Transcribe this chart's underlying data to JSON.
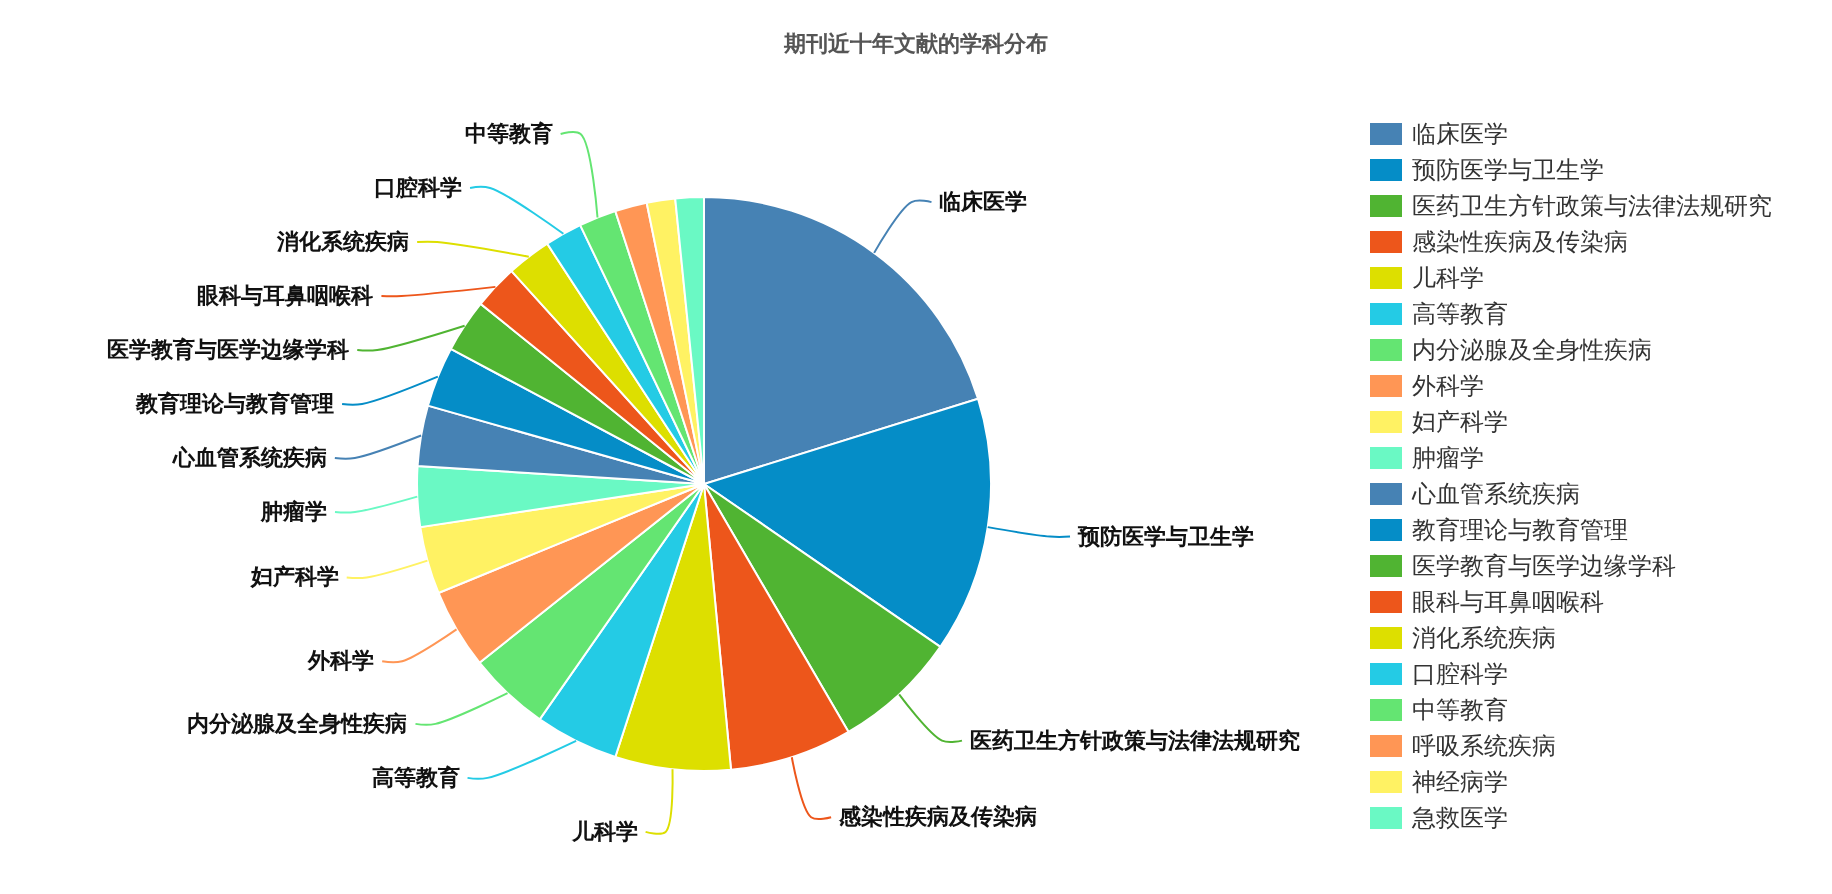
{
  "chart_data": {
    "type": "pie",
    "title": "期刊近十年文献的学科分布",
    "categories": [
      "临床医学",
      "预防医学与卫生学",
      "医药卫生方针政策与法律法规研究",
      "感染性疾病及传染病",
      "儿科学",
      "高等教育",
      "内分泌腺及全身性疾病",
      "外科学",
      "妇产科学",
      "肿瘤学",
      "心血管系统疾病",
      "教育理论与教育管理",
      "医学教育与医学边缘学科",
      "眼科与耳鼻咽喉科",
      "消化系统疾病",
      "口腔科学",
      "中等教育",
      "呼吸系统疾病",
      "神经病学",
      "急救医学"
    ],
    "values": [
      20.2,
      14.4,
      7.0,
      6.9,
      6.5,
      4.7,
      4.6,
      4.5,
      3.8,
      3.4,
      3.4,
      3.4,
      3.0,
      2.5,
      2.5,
      2.1,
      2.1,
      1.8,
      1.6,
      1.6
    ],
    "colors": [
      "#4682b4",
      "#058dc7",
      "#50b432",
      "#ed561b",
      "#dddf00",
      "#24cbe5",
      "#64e572",
      "#ff9655",
      "#fff263",
      "#6af9c4",
      "#4682b4",
      "#058dc7",
      "#50b432",
      "#ed561b",
      "#dddf00",
      "#24cbe5",
      "#64e572",
      "#ff9655",
      "#fff263",
      "#6af9c4"
    ],
    "legend": "right"
  }
}
